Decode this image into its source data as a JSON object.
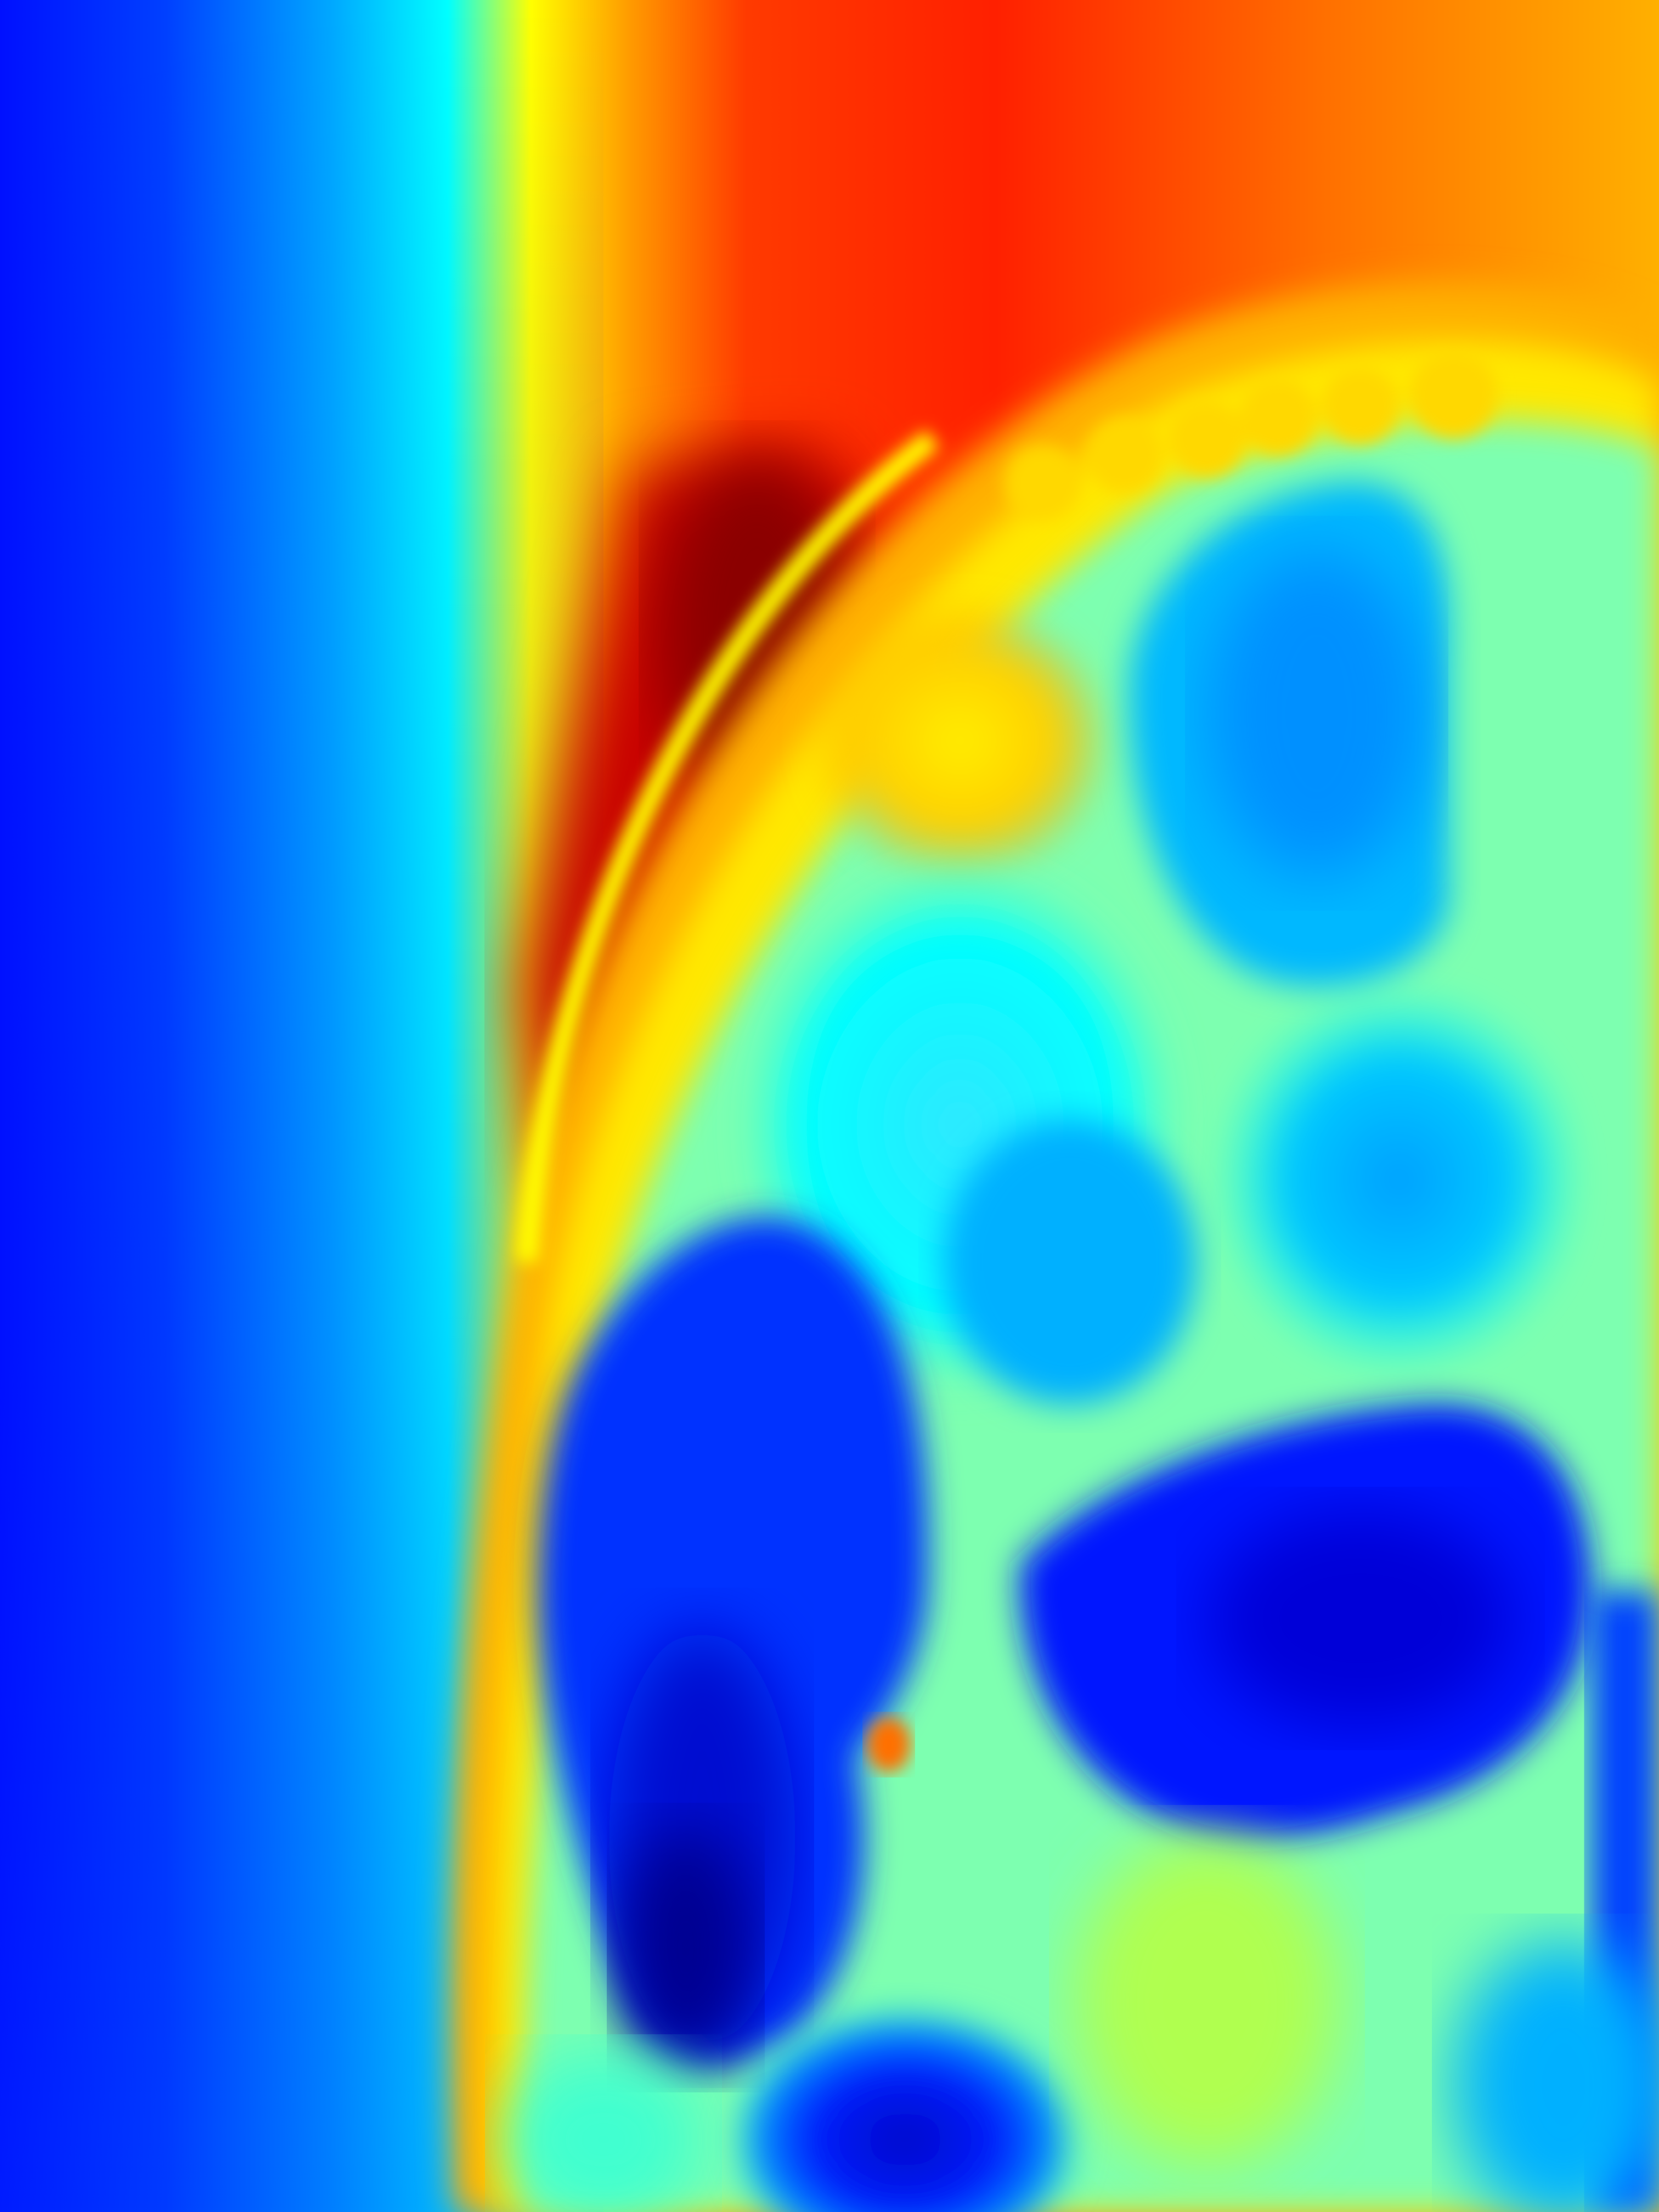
{
  "image": {
    "kind": "depth-map heatmap",
    "colormap": "jet",
    "colors": {
      "near": "#00008f",
      "blue": "#0010ff",
      "cyan": "#00e6ff",
      "green": "#7dffb0",
      "yellow": "#ffff00",
      "orange": "#ff8a00",
      "red": "#ff1a00",
      "far": "#8f0000"
    }
  }
}
